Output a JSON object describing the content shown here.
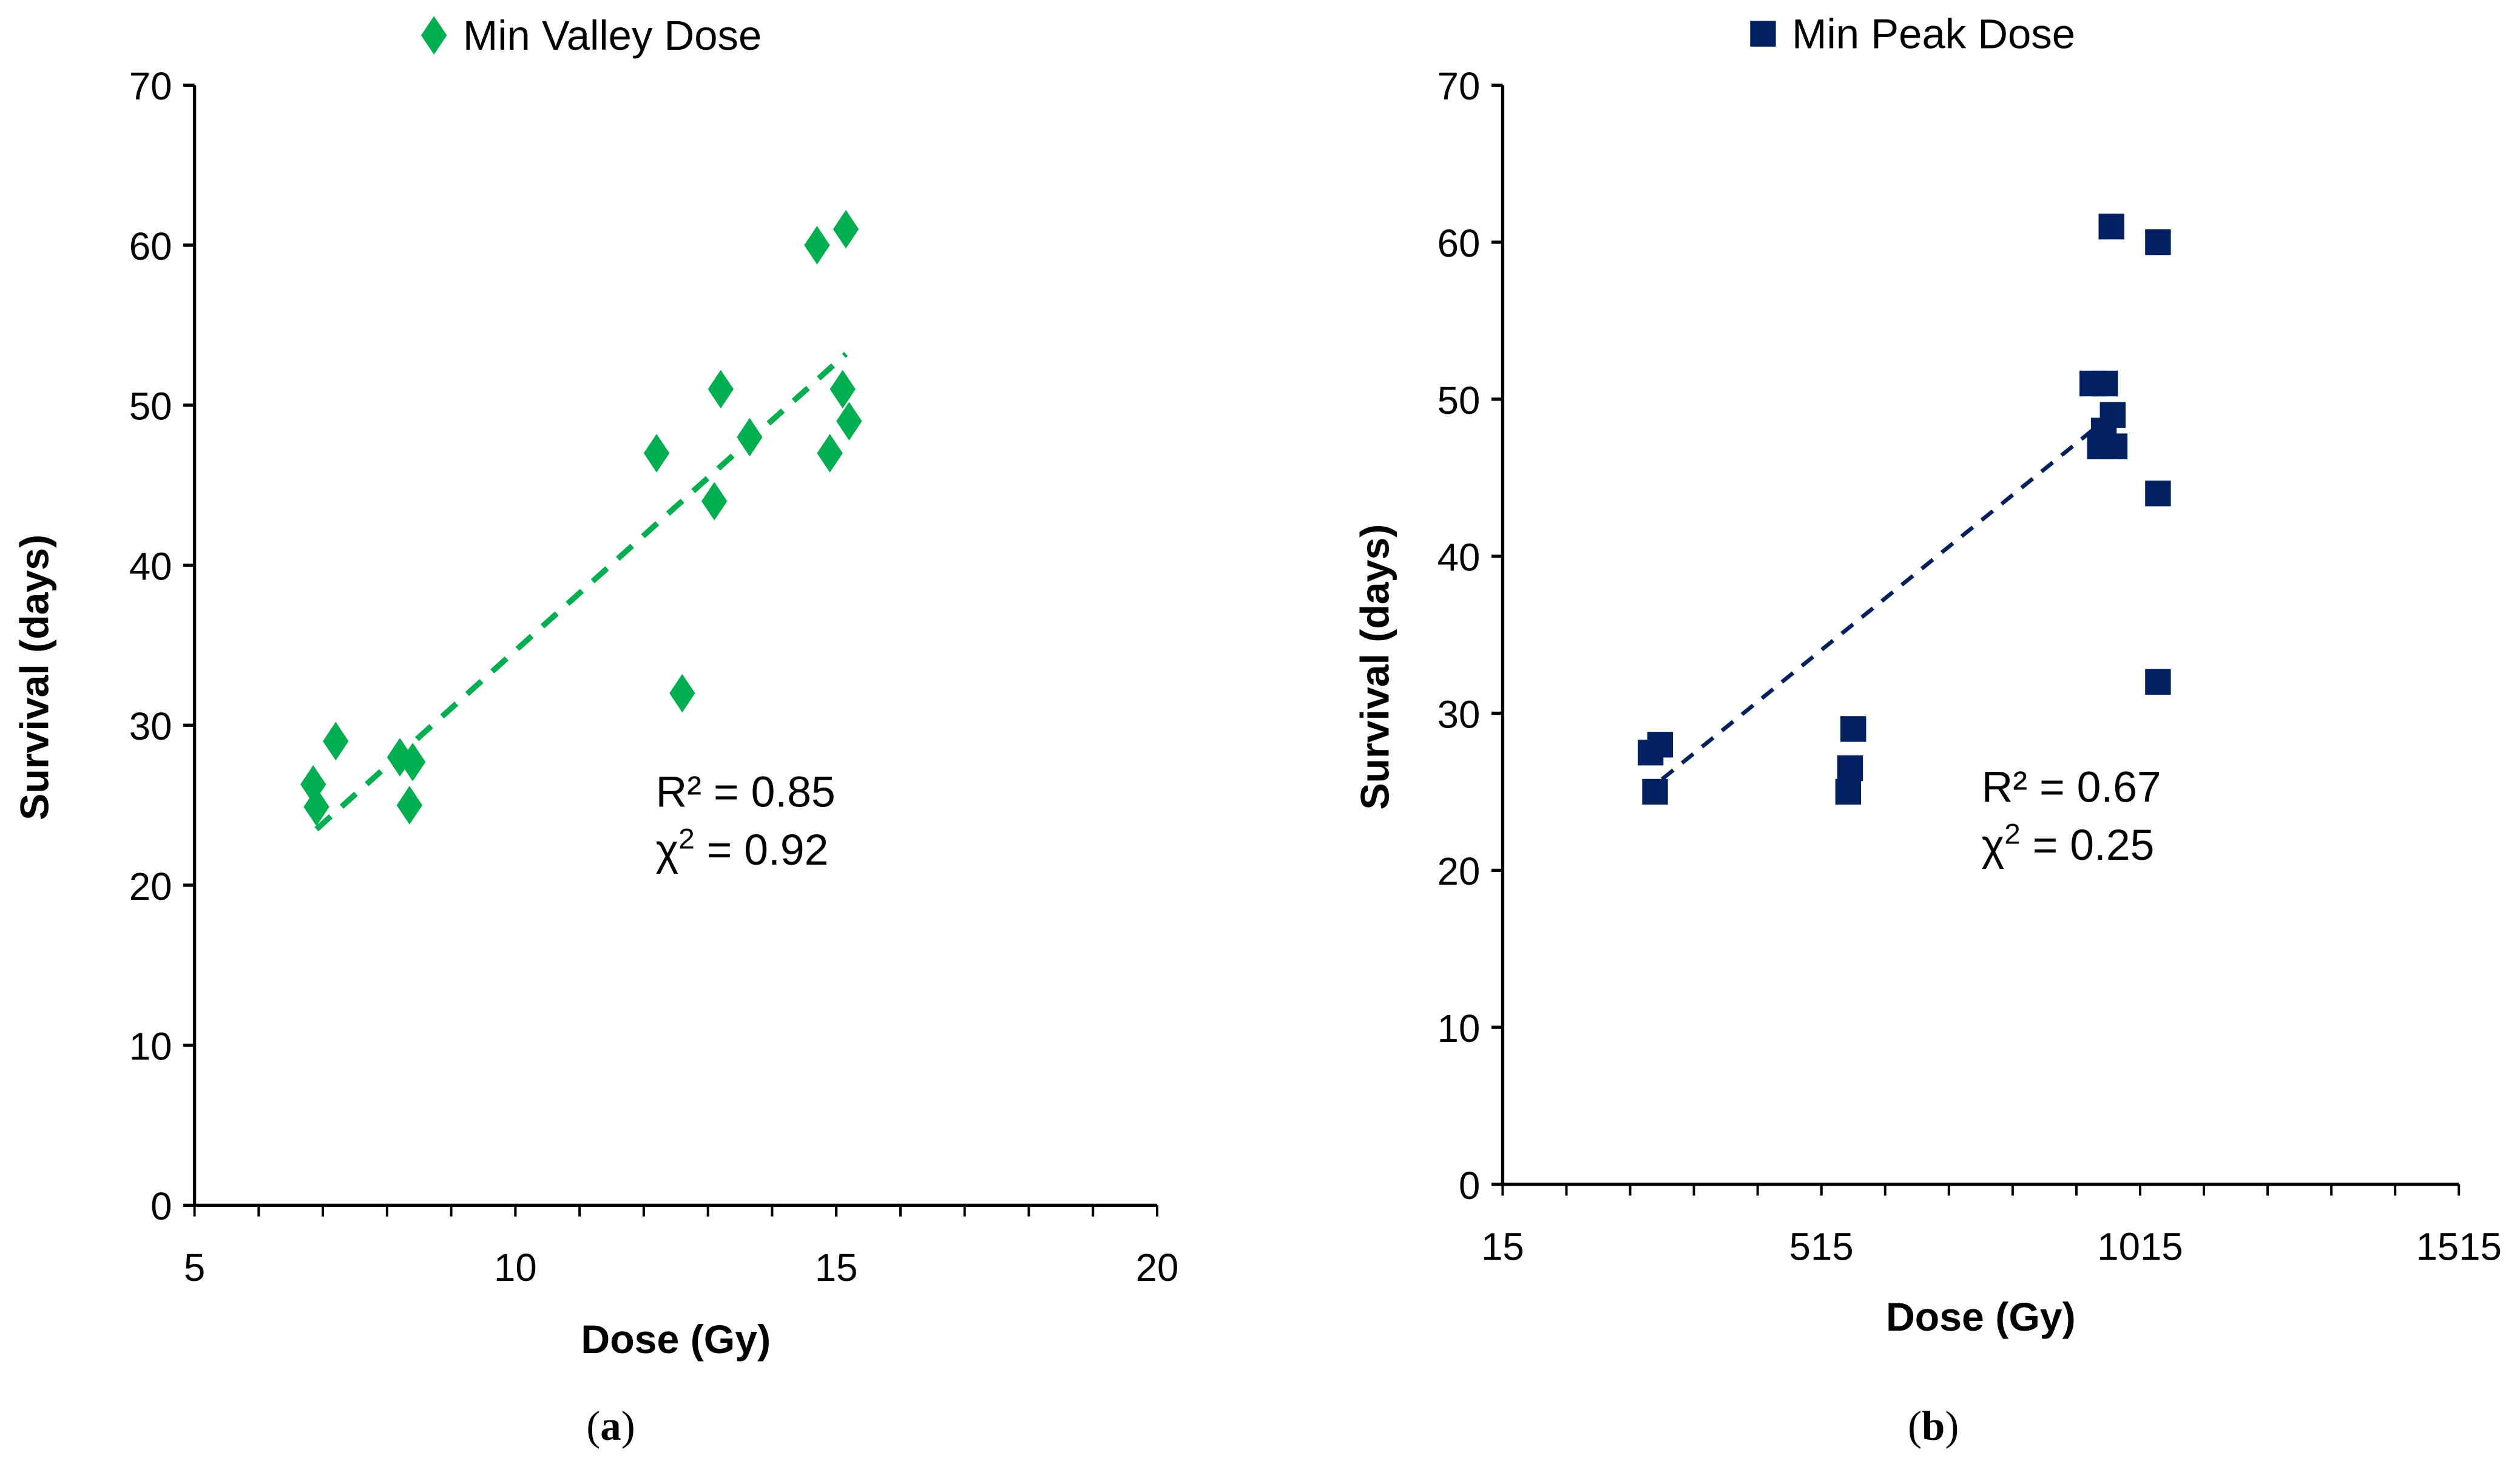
{
  "chart_data": [
    {
      "type": "scatter",
      "panel_label": "a",
      "legend": "Min Valley Dose",
      "legend_position": "top-center",
      "xlabel": "Dose (Gy)",
      "ylabel": "Survival (days)",
      "xlim": [
        5,
        20
      ],
      "ylim": [
        0,
        70
      ],
      "xticks": [
        5,
        10,
        15,
        20
      ],
      "yticks": [
        0,
        10,
        20,
        30,
        40,
        50,
        60,
        70
      ],
      "grid": false,
      "color": "#00b050",
      "marker": "diamond",
      "points": [
        {
          "x": 6.85,
          "y": 26.3
        },
        {
          "x": 6.9,
          "y": 24.9
        },
        {
          "x": 7.2,
          "y": 29
        },
        {
          "x": 8.2,
          "y": 28
        },
        {
          "x": 8.4,
          "y": 27.7
        },
        {
          "x": 8.35,
          "y": 25
        },
        {
          "x": 12.2,
          "y": 47
        },
        {
          "x": 12.6,
          "y": 32
        },
        {
          "x": 13.1,
          "y": 44
        },
        {
          "x": 13.2,
          "y": 51
        },
        {
          "x": 13.65,
          "y": 48
        },
        {
          "x": 14.7,
          "y": 60
        },
        {
          "x": 15.15,
          "y": 61
        },
        {
          "x": 15.1,
          "y": 51
        },
        {
          "x": 15.2,
          "y": 49
        },
        {
          "x": 14.9,
          "y": 47
        }
      ],
      "trendline": {
        "x": [
          6.9,
          15.15
        ],
        "y": [
          23.5,
          53.2
        ],
        "style": "dashed"
      },
      "annotation": {
        "r2": "R² = 0.85",
        "chi2_prefix": "χ",
        "chi2_sup": "2",
        "chi2_value": " = 0.92"
      }
    },
    {
      "type": "scatter",
      "panel_label": "b",
      "legend": "Min Peak Dose",
      "legend_position": "top-center",
      "xlabel": "Dose (Gy)",
      "ylabel": "Survival (days)",
      "xlim": [
        15,
        1515
      ],
      "ylim": [
        0,
        70
      ],
      "xticks": [
        15,
        515,
        1015,
        1515
      ],
      "yticks": [
        0,
        10,
        20,
        30,
        40,
        50,
        60,
        70
      ],
      "grid": false,
      "color": "#002060",
      "marker": "square",
      "points": [
        {
          "x": 247,
          "y": 27.5
        },
        {
          "x": 262,
          "y": 28
        },
        {
          "x": 254,
          "y": 25
        },
        {
          "x": 557,
          "y": 25
        },
        {
          "x": 560,
          "y": 26.5
        },
        {
          "x": 565,
          "y": 29
        },
        {
          "x": 940,
          "y": 51
        },
        {
          "x": 960,
          "y": 51
        },
        {
          "x": 970,
          "y": 61
        },
        {
          "x": 1043,
          "y": 60
        },
        {
          "x": 958,
          "y": 48
        },
        {
          "x": 972,
          "y": 49
        },
        {
          "x": 952,
          "y": 47
        },
        {
          "x": 975,
          "y": 47
        },
        {
          "x": 1043,
          "y": 44
        },
        {
          "x": 1043,
          "y": 32
        }
      ],
      "trendline": {
        "x": [
          265,
          985
        ],
        "y": [
          25.8,
          49.5
        ],
        "style": "dashed"
      },
      "annotation": {
        "r2": "R² = 0.67",
        "chi2_prefix": "χ",
        "chi2_sup": "2",
        "chi2_value": " = 0.25"
      }
    }
  ]
}
